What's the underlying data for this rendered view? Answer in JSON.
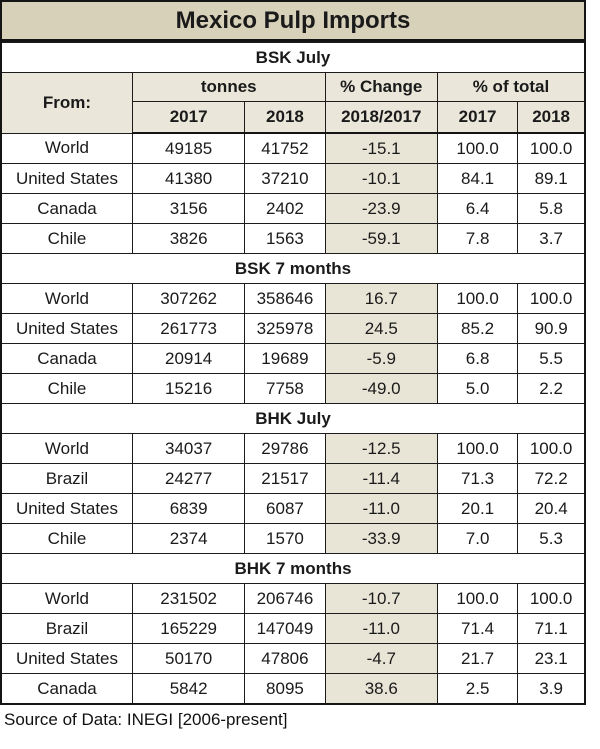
{
  "page": {
    "title": "Mexico Pulp Imports",
    "source": "Source of Data: INEGI [2006-present]"
  },
  "header": {
    "from": "From:",
    "tonnes": "tonnes",
    "pct_change": "% Change",
    "pct_change_period": "2018/2017",
    "pct_total": "% of total",
    "year_2017": "2017",
    "year_2018": "2018"
  },
  "colors": {
    "title_bg": "#d7d1b9",
    "header_bg": "#eae7da",
    "change_col_bg": "#e8e5d7",
    "border": "#141414",
    "text": "#1a1a1a"
  },
  "chart_data": [
    {
      "type": "table",
      "title": "BSK July",
      "columns": [
        "From:",
        "tonnes 2017",
        "tonnes 2018",
        "% Change 2018/2017",
        "% of total 2017",
        "% of total 2018"
      ],
      "rows": [
        [
          "World",
          "49185",
          "41752",
          "-15.1",
          "100.0",
          "100.0"
        ],
        [
          "United States",
          "41380",
          "37210",
          "-10.1",
          "84.1",
          "89.1"
        ],
        [
          "Canada",
          "3156",
          "2402",
          "-23.9",
          "6.4",
          "5.8"
        ],
        [
          "Chile",
          "3826",
          "1563",
          "-59.1",
          "7.8",
          "3.7"
        ]
      ]
    },
    {
      "type": "table",
      "title": "BSK 7 months",
      "columns": [
        "From:",
        "tonnes 2017",
        "tonnes 2018",
        "% Change 2018/2017",
        "% of total 2017",
        "% of total 2018"
      ],
      "rows": [
        [
          "World",
          "307262",
          "358646",
          "16.7",
          "100.0",
          "100.0"
        ],
        [
          "United States",
          "261773",
          "325978",
          "24.5",
          "85.2",
          "90.9"
        ],
        [
          "Canada",
          "20914",
          "19689",
          "-5.9",
          "6.8",
          "5.5"
        ],
        [
          "Chile",
          "15216",
          "7758",
          "-49.0",
          "5.0",
          "2.2"
        ]
      ]
    },
    {
      "type": "table",
      "title": "BHK July",
      "columns": [
        "From:",
        "tonnes 2017",
        "tonnes 2018",
        "% Change 2018/2017",
        "% of total 2017",
        "% of total 2018"
      ],
      "rows": [
        [
          "World",
          "34037",
          "29786",
          "-12.5",
          "100.0",
          "100.0"
        ],
        [
          "Brazil",
          "24277",
          "21517",
          "-11.4",
          "71.3",
          "72.2"
        ],
        [
          "United States",
          "6839",
          "6087",
          "-11.0",
          "20.1",
          "20.4"
        ],
        [
          "Chile",
          "2374",
          "1570",
          "-33.9",
          "7.0",
          "5.3"
        ]
      ]
    },
    {
      "type": "table",
      "title": "BHK 7 months",
      "columns": [
        "From:",
        "tonnes 2017",
        "tonnes 2018",
        "% Change 2018/2017",
        "% of total 2017",
        "% of total 2018"
      ],
      "rows": [
        [
          "World",
          "231502",
          "206746",
          "-10.7",
          "100.0",
          "100.0"
        ],
        [
          "Brazil",
          "165229",
          "147049",
          "-11.0",
          "71.4",
          "71.1"
        ],
        [
          "United States",
          "50170",
          "47806",
          "-4.7",
          "21.7",
          "23.1"
        ],
        [
          "Canada",
          "5842",
          "8095",
          "38.6",
          "2.5",
          "3.9"
        ]
      ]
    }
  ]
}
